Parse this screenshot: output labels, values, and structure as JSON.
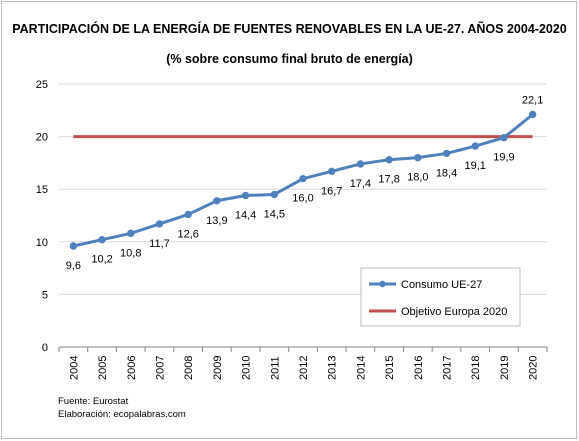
{
  "footer": {
    "source": "Fuente: Eurostat",
    "elaboration": "Elaboración: ecopalabras.com"
  },
  "chart_data": {
    "type": "line",
    "title": "PARTICIPACIÓN DE LA ENERGÍA DE FUENTES RENOVABLES EN LA UE-27. AÑOS 2004-2020",
    "subtitle": "(% sobre consumo final bruto de energía)",
    "xlabel": "",
    "ylabel": "",
    "ylim": [
      0,
      25
    ],
    "yticks": [
      "0",
      "5",
      "10",
      "15",
      "20",
      "25"
    ],
    "categories": [
      "2004",
      "2005",
      "2006",
      "2007",
      "2008",
      "2009",
      "2010",
      "2011",
      "2012",
      "2013",
      "2014",
      "2015",
      "2016",
      "2017",
      "2018",
      "2019",
      "2020"
    ],
    "grid": true,
    "legend_position": "bottom-right",
    "series": [
      {
        "name": "Consumo UE-27",
        "color": "#4f81bd",
        "marker": "circle",
        "values": [
          9.6,
          10.2,
          10.8,
          11.7,
          12.6,
          13.9,
          14.4,
          14.5,
          16.0,
          16.7,
          17.4,
          17.8,
          18.0,
          18.4,
          19.1,
          19.9,
          22.1
        ],
        "labels": [
          "9,6",
          "10,2",
          "10,8",
          "11,7",
          "12,6",
          "13,9",
          "14,4",
          "14,5",
          "16,0",
          "16,7",
          "17,4",
          "17,8",
          "18,0",
          "18,4",
          "19,1",
          "19,9",
          "22,1"
        ]
      },
      {
        "name": "Objetivo Europa 2020",
        "color": "#c0504d",
        "marker": "none",
        "values": [
          20,
          20,
          20,
          20,
          20,
          20,
          20,
          20,
          20,
          20,
          20,
          20,
          20,
          20,
          20,
          20,
          20
        ]
      }
    ]
  }
}
